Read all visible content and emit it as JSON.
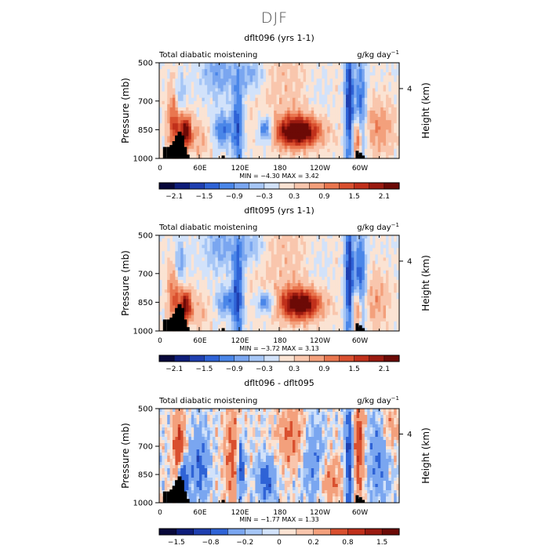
{
  "page": {
    "title": "DJF"
  },
  "chart_data": [
    {
      "type": "heatmap",
      "title": "dflt096 (yrs 1-1)",
      "field_label": "Total diabatic moistening",
      "units_base": "g/kg day",
      "units_exp": "−1",
      "ylabel": "Pressure (mb)",
      "y2label": "Height (km)",
      "y_ticks": [
        "500",
        "700",
        "850",
        "1000"
      ],
      "y_tick_values": [
        500,
        700,
        850,
        1000
      ],
      "y2_ticks": [
        "4"
      ],
      "x_ticks": [
        "0",
        "60E",
        "120E",
        "180",
        "120W",
        "60W"
      ],
      "x_tick_values": [
        0,
        60,
        120,
        180,
        240,
        300
      ],
      "xlim": [
        0,
        360
      ],
      "ylim": [
        1000,
        500
      ],
      "stats": "MIN =  −4.30   MAX =   3.42",
      "min": -4.3,
      "max": 3.42,
      "colorbar_labels": [
        "−2.1",
        "−1.5",
        "−0.9",
        "−0.3",
        "0.3",
        "0.9",
        "1.5",
        "2.1"
      ],
      "colorbar_levels": [
        -2.4,
        -2.1,
        -1.8,
        -1.5,
        -1.2,
        -0.9,
        -0.6,
        -0.3,
        0.0,
        0.3,
        0.6,
        0.9,
        1.2,
        1.5,
        1.8,
        2.1,
        2.4
      ],
      "features": [
        {
          "lon": 24,
          "p": 800,
          "value": 1.6,
          "wlon": 8,
          "wp": 140
        },
        {
          "lon": 40,
          "p": 860,
          "value": 2.1,
          "wlon": 6,
          "wp": 60
        },
        {
          "lon": 30,
          "p": 680,
          "value": -1.2,
          "wlon": 6,
          "wp": 80
        },
        {
          "lon": 90,
          "p": 560,
          "value": -0.9,
          "wlon": 18,
          "wp": 90
        },
        {
          "lon": 95,
          "p": 850,
          "value": -1.3,
          "wlon": 10,
          "wp": 60
        },
        {
          "lon": 118,
          "p": 820,
          "value": -1.5,
          "wlon": 6,
          "wp": 180
        },
        {
          "lon": 160,
          "p": 850,
          "value": -1.6,
          "wlon": 8,
          "wp": 50
        },
        {
          "lon": 140,
          "p": 560,
          "value": -0.9,
          "wlon": 14,
          "wp": 70
        },
        {
          "lon": 208,
          "p": 860,
          "value": 2.6,
          "wlon": 24,
          "wp": 55
        },
        {
          "lon": 240,
          "p": 650,
          "value": -0.4,
          "wlon": 18,
          "wp": 160
        },
        {
          "lon": 285,
          "p": 700,
          "value": -1.9,
          "wlon": 5,
          "wp": 260
        },
        {
          "lon": 302,
          "p": 780,
          "value": -1.6,
          "wlon": 6,
          "wp": 220
        },
        {
          "lon": 298,
          "p": 900,
          "value": 1.9,
          "wlon": 5,
          "wp": 80
        },
        {
          "lon": 330,
          "p": 840,
          "value": 0.8,
          "wlon": 18,
          "wp": 110
        },
        {
          "lon": 200,
          "p": 620,
          "value": 0.45,
          "wlon": 60,
          "wp": 260
        },
        {
          "lon": 60,
          "p": 900,
          "value": 0.6,
          "wlon": 12,
          "wp": 80
        }
      ]
    },
    {
      "type": "heatmap",
      "title": "dflt095 (yrs 1-1)",
      "field_label": "Total diabatic moistening",
      "units_base": "g/kg day",
      "units_exp": "−1",
      "ylabel": "Pressure (mb)",
      "y2label": "Height (km)",
      "y_ticks": [
        "500",
        "700",
        "850",
        "1000"
      ],
      "y_tick_values": [
        500,
        700,
        850,
        1000
      ],
      "y2_ticks": [
        "4"
      ],
      "x_ticks": [
        "0",
        "60E",
        "120E",
        "180",
        "120W",
        "60W"
      ],
      "x_tick_values": [
        0,
        60,
        120,
        180,
        240,
        300
      ],
      "xlim": [
        0,
        360
      ],
      "ylim": [
        1000,
        500
      ],
      "stats": "MIN =  −3.72   MAX =   3.13",
      "min": -3.72,
      "max": 3.13,
      "colorbar_labels": [
        "−2.1",
        "−1.5",
        "−0.9",
        "−0.3",
        "0.3",
        "0.9",
        "1.5",
        "2.1"
      ],
      "colorbar_levels": [
        -2.4,
        -2.1,
        -1.8,
        -1.5,
        -1.2,
        -0.9,
        -0.6,
        -0.3,
        0.0,
        0.3,
        0.6,
        0.9,
        1.2,
        1.5,
        1.8,
        2.1,
        2.4
      ],
      "features": [
        {
          "lon": 24,
          "p": 800,
          "value": 1.4,
          "wlon": 8,
          "wp": 140
        },
        {
          "lon": 40,
          "p": 870,
          "value": 2.0,
          "wlon": 6,
          "wp": 60
        },
        {
          "lon": 30,
          "p": 660,
          "value": -1.3,
          "wlon": 6,
          "wp": 90
        },
        {
          "lon": 92,
          "p": 560,
          "value": -0.8,
          "wlon": 18,
          "wp": 90
        },
        {
          "lon": 100,
          "p": 850,
          "value": -1.1,
          "wlon": 10,
          "wp": 50
        },
        {
          "lon": 118,
          "p": 800,
          "value": -1.6,
          "wlon": 6,
          "wp": 200
        },
        {
          "lon": 160,
          "p": 850,
          "value": -1.3,
          "wlon": 10,
          "wp": 40
        },
        {
          "lon": 140,
          "p": 560,
          "value": -0.8,
          "wlon": 14,
          "wp": 70
        },
        {
          "lon": 212,
          "p": 860,
          "value": 2.5,
          "wlon": 22,
          "wp": 55
        },
        {
          "lon": 240,
          "p": 650,
          "value": -0.4,
          "wlon": 18,
          "wp": 160
        },
        {
          "lon": 285,
          "p": 700,
          "value": -1.9,
          "wlon": 5,
          "wp": 260
        },
        {
          "lon": 302,
          "p": 780,
          "value": -1.7,
          "wlon": 6,
          "wp": 220
        },
        {
          "lon": 298,
          "p": 900,
          "value": 1.8,
          "wlon": 5,
          "wp": 80
        },
        {
          "lon": 325,
          "p": 850,
          "value": 0.7,
          "wlon": 16,
          "wp": 110
        },
        {
          "lon": 200,
          "p": 620,
          "value": 0.45,
          "wlon": 60,
          "wp": 260
        },
        {
          "lon": 60,
          "p": 900,
          "value": 0.5,
          "wlon": 12,
          "wp": 80
        }
      ]
    },
    {
      "type": "heatmap",
      "title": "dflt096 - dflt095",
      "field_label": "Total diabatic moistening",
      "units_base": "g/kg day",
      "units_exp": "−1",
      "ylabel": "Pressure (mb)",
      "y2label": "Height (km)",
      "y_ticks": [
        "500",
        "700",
        "850",
        "1000"
      ],
      "y_tick_values": [
        500,
        700,
        850,
        1000
      ],
      "y2_ticks": [
        "4"
      ],
      "x_ticks": [
        "0",
        "60E",
        "120E",
        "180",
        "120W",
        "60W"
      ],
      "x_tick_values": [
        0,
        60,
        120,
        180,
        240,
        300
      ],
      "xlim": [
        0,
        360
      ],
      "ylim": [
        1000,
        500
      ],
      "stats": "MIN =  −1.77   MAX =   1.33",
      "min": -1.77,
      "max": 1.33,
      "colorbar_labels": [
        "−1.5",
        "−0.8",
        "−0.2",
        "0",
        "0.2",
        "0.8",
        "1.5"
      ],
      "colorbar_levels": [
        -2.0,
        -1.5,
        -1.0,
        -0.8,
        -0.5,
        -0.2,
        -0.1,
        0.0,
        0.1,
        0.2,
        0.5,
        0.8,
        1.0,
        1.5,
        2.0
      ],
      "features": [
        {
          "lon": 30,
          "p": 700,
          "value": 0.9,
          "wlon": 6,
          "wp": 120
        },
        {
          "lon": 36,
          "p": 860,
          "value": -1.0,
          "wlon": 5,
          "wp": 80
        },
        {
          "lon": 60,
          "p": 800,
          "value": -0.6,
          "wlon": 10,
          "wp": 150
        },
        {
          "lon": 110,
          "p": 760,
          "value": 0.6,
          "wlon": 8,
          "wp": 200
        },
        {
          "lon": 122,
          "p": 820,
          "value": -0.9,
          "wlon": 4,
          "wp": 120
        },
        {
          "lon": 160,
          "p": 880,
          "value": -0.7,
          "wlon": 10,
          "wp": 80
        },
        {
          "lon": 200,
          "p": 640,
          "value": 0.5,
          "wlon": 16,
          "wp": 120
        },
        {
          "lon": 230,
          "p": 760,
          "value": -0.5,
          "wlon": 12,
          "wp": 160
        },
        {
          "lon": 258,
          "p": 880,
          "value": 0.5,
          "wlon": 12,
          "wp": 80
        },
        {
          "lon": 285,
          "p": 760,
          "value": -0.9,
          "wlon": 4,
          "wp": 240
        },
        {
          "lon": 300,
          "p": 700,
          "value": 0.8,
          "wlon": 5,
          "wp": 200
        },
        {
          "lon": 330,
          "p": 760,
          "value": -0.5,
          "wlon": 12,
          "wp": 180
        },
        {
          "lon": 345,
          "p": 600,
          "value": 0.4,
          "wlon": 10,
          "wp": 100
        }
      ]
    }
  ],
  "colors": {
    "palette_17": [
      "#08083a",
      "#0e1d7a",
      "#1f3fb0",
      "#2f63d6",
      "#4a86e8",
      "#7aa6f0",
      "#a6c6f6",
      "#d2e2fa",
      "#fbe3d3",
      "#f9c6ad",
      "#f3a07c",
      "#e9764f",
      "#d9502f",
      "#c0301b",
      "#9a1a10",
      "#6c0a06"
    ],
    "terrain": "#000000"
  }
}
